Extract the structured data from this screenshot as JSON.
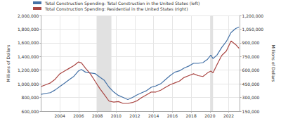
{
  "chart_data": {
    "type": "line",
    "ylabel": "Millions of Dollars",
    "y2label": "Millions of Dollars",
    "x": [
      2002.0,
      2002.5,
      2003.0,
      2003.5,
      2004.0,
      2004.5,
      2005.0,
      2005.5,
      2006.0,
      2006.3,
      2006.75,
      2007.25,
      2007.75,
      2008.25,
      2008.75,
      2009.25,
      2009.75,
      2010.25,
      2010.75,
      2011.25,
      2011.75,
      2012.25,
      2012.75,
      2013.25,
      2013.75,
      2014.25,
      2014.75,
      2015.25,
      2015.75,
      2016.25,
      2016.75,
      2017.25,
      2017.75,
      2018.25,
      2018.75,
      2019.25,
      2019.75,
      2020.1,
      2020.33,
      2020.75,
      2021.25,
      2021.75,
      2022.25,
      2022.75,
      2023.1
    ],
    "series": [
      {
        "name": "Total Construction Spending: Total Construction in the United States (left)",
        "color": "#4572a7",
        "values": [
          845000,
          860000,
          870000,
          910000,
          960000,
          1010000,
          1060000,
          1110000,
          1190000,
          1210000,
          1170000,
          1160000,
          1150000,
          1100000,
          1050000,
          950000,
          880000,
          830000,
          800000,
          770000,
          800000,
          840000,
          870000,
          900000,
          950000,
          970000,
          1000000,
          1060000,
          1120000,
          1170000,
          1190000,
          1230000,
          1260000,
          1300000,
          1300000,
          1310000,
          1360000,
          1420000,
          1370000,
          1420000,
          1530000,
          1620000,
          1750000,
          1810000,
          1830000
        ]
      },
      {
        "name": "Total Construction Spending: Residential in the United States (right)",
        "color": "#aa4643",
        "axis": "y2",
        "values": [
          420000,
          440000,
          460000,
          500000,
          560000,
          590000,
          620000,
          650000,
          690000,
          680000,
          620000,
          560000,
          480000,
          400000,
          330000,
          260000,
          250000,
          255000,
          235000,
          235000,
          245000,
          265000,
          300000,
          330000,
          360000,
          360000,
          380000,
          410000,
          440000,
          460000,
          480000,
          520000,
          540000,
          560000,
          540000,
          530000,
          570000,
          590000,
          570000,
          660000,
          760000,
          810000,
          920000,
          880000,
          840000
        ]
      }
    ],
    "recessions": [
      [
        2007.92,
        2009.5
      ],
      [
        2020.08,
        2020.33
      ]
    ],
    "xlim": [
      2002,
      2023.2
    ],
    "xticks": [
      2004,
      2006,
      2008,
      2010,
      2012,
      2014,
      2016,
      2018,
      2020,
      2022
    ],
    "ylim": [
      600000,
      2000000
    ],
    "yticks": [
      {
        "value": 600000,
        "label": "600,000"
      },
      {
        "value": 800000,
        "label": "800,000"
      },
      {
        "value": 1000000,
        "label": "1,000,000"
      },
      {
        "value": 1200000,
        "label": "1,200,000"
      },
      {
        "value": 1400000,
        "label": "1,400,000"
      },
      {
        "value": 1600000,
        "label": "1,600,000"
      },
      {
        "value": 1800000,
        "label": "1,800,000"
      },
      {
        "value": 2000000,
        "label": "2,000,000"
      }
    ],
    "y2lim": [
      150000,
      1200000
    ],
    "y2ticks": [
      {
        "value": 150000,
        "label": "150,000"
      },
      {
        "value": 300000,
        "label": "300,000"
      },
      {
        "value": 450000,
        "label": "450,000"
      },
      {
        "value": 600000,
        "label": "600,000"
      },
      {
        "value": 750000,
        "label": "750,000"
      },
      {
        "value": 900000,
        "label": "900,000"
      },
      {
        "value": 1050000,
        "label": "1,050,000"
      },
      {
        "value": 1200000,
        "label": "1,200,000"
      }
    ],
    "grid": true,
    "legend": "top"
  }
}
